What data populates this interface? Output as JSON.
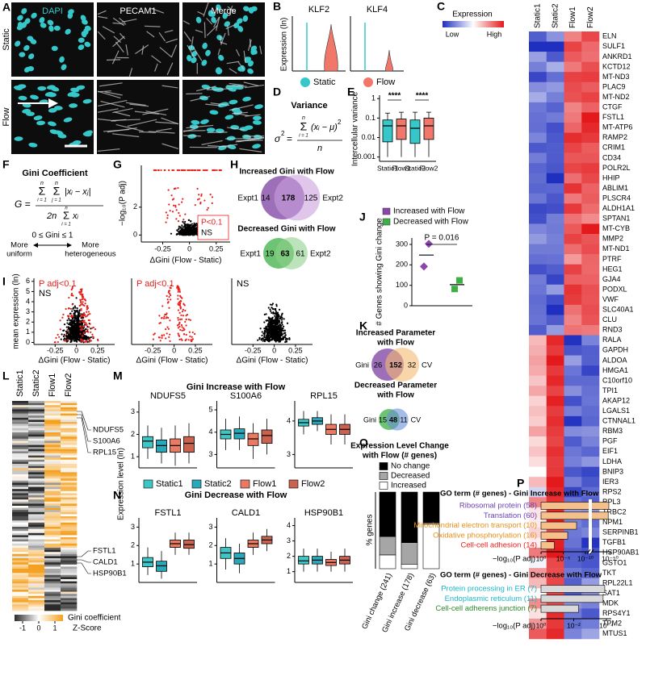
{
  "A": {
    "label": "A",
    "channels": [
      "DAPI",
      "PECAM1",
      "Merge"
    ],
    "conditions": [
      "Static",
      "Flow"
    ]
  },
  "B": {
    "label": "B",
    "genes": [
      "KLF2",
      "KLF4"
    ],
    "y_label": "Expression (ln)",
    "legend": [
      {
        "name": "Static",
        "color": "#35c7c9"
      },
      {
        "name": "Flow",
        "color": "#f0776a"
      }
    ]
  },
  "C": {
    "label": "C",
    "legend_title": "Expression",
    "legend_low": "Low",
    "legend_high": "High",
    "columns": [
      "Static1",
      "Static2",
      "Flow1",
      "Flow2"
    ],
    "genes_up": [
      "ELN",
      "SULF1",
      "ANKRD1",
      "KCTD12",
      "MT-ND3",
      "PLAC9",
      "MT-ND2",
      "CTGF",
      "FSTL1",
      "MT-ATP6",
      "RAMP2",
      "CRIM1",
      "CD34",
      "POLR2L",
      "HHIP",
      "ABLIM1",
      "PLSCR4",
      "ALDH1A1",
      "SPTAN1",
      "MT-CYB",
      "MMP2",
      "MT-ND1",
      "PTRF",
      "HEG1",
      "GJA4",
      "PODXL",
      "VWF",
      "SLC40A1",
      "CLU",
      "RND3"
    ],
    "genes_down": [
      "RALA",
      "GAPDH",
      "ALDOA",
      "HMGA1",
      "C10orf10",
      "TPI1",
      "AKAP12",
      "LGALS1",
      "CTNNAL1",
      "RBM3",
      "PGF",
      "EIF1",
      "LDHA",
      "BNIP3",
      "IER3",
      "RPS2",
      "RPL3",
      "TRBC2",
      "NPM1",
      "SERPINB1",
      "TGFB1",
      "HSP90AB1",
      "GSTO1",
      "TKT",
      "RPL22L1",
      "SAT1",
      "MDK",
      "RPS4Y1",
      "TPM2",
      "MTUS1"
    ]
  },
  "D": {
    "label": "D",
    "title": "Variance",
    "sigma": "σ",
    "sq": "2",
    "eq": "=",
    "sum": "Σ",
    "sum_top": "n",
    "sum_bottom": "i = 1",
    "numerator": "(xᵢ − μ)",
    "denominator": "n"
  },
  "E": {
    "label": "E",
    "y_label": "Intercellular variance",
    "log_y": true,
    "ylim": [
      0.0006,
      1.5
    ],
    "yticks": [
      1,
      0.1,
      0.01,
      0.001
    ],
    "categories": [
      "Static1",
      "Flow1",
      "Static2",
      "Flow2"
    ],
    "colors": [
      "#35c7c9",
      "#f0776a",
      "#35c7c9",
      "#f0776a"
    ],
    "boxes": [
      [
        0.001,
        0.006,
        0.04,
        0.08,
        0.18
      ],
      [
        0.001,
        0.008,
        0.04,
        0.09,
        0.2
      ],
      [
        0.001,
        0.005,
        0.03,
        0.08,
        0.2
      ],
      [
        0.001,
        0.008,
        0.04,
        0.1,
        0.2
      ]
    ],
    "significance": [
      "****",
      "****"
    ]
  },
  "F": {
    "label": "F",
    "title": "Gini Coefficient",
    "lhs": "G =",
    "sum": "Σ",
    "sum_top": "n",
    "sum_bottom_i": "i = 1",
    "sum_bottom_j": "j = 1",
    "numerator": "|xᵢ − xⱼ|",
    "denominator_prefix": "2n",
    "denominator_term": "xᵢ",
    "range": "0 ≤ Gini ≤ 1",
    "left_note": [
      "More",
      "uniform"
    ],
    "right_note": [
      "More",
      "heterogeneous"
    ]
  },
  "G": {
    "label": "G",
    "y_label": "−log₁₀(P adj)",
    "x_label": "ΔGini (Flow - Static)",
    "xlim": [
      -0.45,
      0.38
    ],
    "ylim": [
      -0.5,
      5
    ],
    "xticks": [
      -0.25,
      0,
      0.25
    ],
    "yticks": [
      0,
      2
    ],
    "legend": [
      {
        "name": "P<0.1",
        "color": "#e8201c"
      },
      {
        "name": "NS",
        "color": "#000000"
      }
    ]
  },
  "H": {
    "label": "H",
    "venns": [
      {
        "title": "Increased Gini with Flow",
        "left": "Expt1",
        "right": "Expt2",
        "counts": [
          14,
          178,
          125
        ],
        "colors": [
          "#7b3fa0",
          "#c9a0dc"
        ]
      },
      {
        "title": "Decreased Gini with Flow",
        "left": "Expt1",
        "right": "Expt2",
        "counts": [
          19,
          63,
          61
        ],
        "colors": [
          "#3cb043",
          "#8fd18a"
        ]
      }
    ]
  },
  "I": {
    "label": "I",
    "y_label": "mean expression (ln)",
    "x_label": "ΔGini (Flow - Static)",
    "xlim": [
      -0.5,
      0.45
    ],
    "ylim": [
      -0.2,
      6.3
    ],
    "xticks": [
      -0.25,
      0,
      0.25
    ],
    "yticks": [
      0,
      1,
      2,
      3,
      4,
      5,
      6
    ],
    "panels": [
      {
        "annotations": [
          {
            "text": "P adj<0.1",
            "color": "#e8201c"
          },
          {
            "text": "NS",
            "color": "#000000"
          }
        ]
      },
      {
        "annotations": [
          {
            "text": "P adj<0.1",
            "color": "#e8201c"
          }
        ]
      },
      {
        "annotations": [
          {
            "text": "NS",
            "color": "#000000"
          }
        ]
      }
    ]
  },
  "J": {
    "label": "J",
    "y_label": "# Genes showing Gini change",
    "ylim": [
      0,
      330
    ],
    "yticks": [
      0,
      100,
      200,
      300
    ],
    "annotation": "P = 0.016",
    "series": [
      {
        "name": "Increased with Flow",
        "color": "#8e44ad",
        "values": [
          192,
          303
        ],
        "mean": 248
      },
      {
        "name": "Decreased with Flow",
        "color": "#3cb043",
        "values": [
          82,
          124
        ],
        "mean": 103
      }
    ]
  },
  "K": {
    "label": "K",
    "venns": [
      {
        "title_lines": [
          "Increased Parameter",
          "with Flow"
        ],
        "left": "Gini",
        "right": "CV",
        "counts": [
          26,
          152,
          32
        ],
        "colors": [
          "#7b3fa0",
          "#f5b971"
        ]
      },
      {
        "title_lines": [
          "Decreased Parameter",
          "with Flow"
        ],
        "left": "Gini",
        "right": "CV",
        "counts": [
          15,
          48,
          11
        ],
        "colors": [
          "#3cb043",
          "#6a8fd8"
        ]
      }
    ]
  },
  "L": {
    "label": "L",
    "columns": [
      "Static1",
      "Static2",
      "Flow1",
      "Flow2"
    ],
    "genes_top": [
      "NDUFS5",
      "S100A6",
      "RPL15"
    ],
    "genes_bottom": [
      "FSTL1",
      "CALD1",
      "HSP90B1"
    ],
    "colorbar_lim": [
      -1.5,
      1.5
    ],
    "colorbar_ticks": [
      -1,
      0,
      1
    ],
    "colorbar_label": [
      "Gini coefficient",
      "Z-Score"
    ]
  },
  "M": {
    "label": "M",
    "title": "Gini Increase with Flow",
    "y_label": "Expression level (ln)",
    "categories": [
      "Static1",
      "Static2",
      "Flow1",
      "Flow2"
    ],
    "colors": [
      "#3ec6c6",
      "#2aa7b8",
      "#ea7a62",
      "#c9624f"
    ],
    "genes": [
      {
        "name": "NDUFS5",
        "ylim": [
          0.5,
          3.5
        ],
        "yticks": [
          1,
          2,
          3
        ],
        "boxes": [
          [
            0.9,
            1.4,
            1.7,
            1.9,
            2.4
          ],
          [
            0.7,
            1.2,
            1.5,
            1.75,
            2.3
          ],
          [
            0.6,
            1.2,
            1.5,
            1.8,
            2.4
          ],
          [
            0.7,
            1.2,
            1.6,
            1.9,
            2.5
          ]
        ]
      },
      {
        "name": "S100A6",
        "ylim": [
          2.4,
          5.4
        ],
        "yticks": [
          3,
          4,
          5
        ],
        "boxes": [
          [
            3.2,
            3.7,
            3.9,
            4.1,
            4.6
          ],
          [
            3.2,
            3.7,
            3.95,
            4.15,
            4.7
          ],
          [
            2.8,
            3.4,
            3.7,
            3.95,
            4.4
          ],
          [
            3.0,
            3.5,
            3.85,
            4.1,
            4.6
          ]
        ]
      },
      {
        "name": "RPL15",
        "ylim": [
          2.6,
          4.6
        ],
        "yticks": [
          3,
          4
        ],
        "boxes": [
          [
            3.6,
            3.85,
            3.95,
            4.05,
            4.3
          ],
          [
            3.7,
            3.9,
            4.0,
            4.1,
            4.3
          ],
          [
            3.3,
            3.6,
            3.75,
            3.9,
            4.2
          ],
          [
            3.3,
            3.6,
            3.75,
            3.9,
            4.2
          ]
        ]
      }
    ]
  },
  "N": {
    "label": "N",
    "title": "Gini Decrease with Flow",
    "genes": [
      {
        "name": "FSTL1",
        "ylim": [
          0,
          3.5
        ],
        "yticks": [
          1,
          2,
          3
        ],
        "boxes": [
          [
            0.4,
            0.85,
            1.1,
            1.35,
            1.9
          ],
          [
            0.2,
            0.6,
            0.9,
            1.15,
            1.7
          ],
          [
            1.5,
            1.9,
            2.1,
            2.3,
            2.7
          ],
          [
            1.5,
            1.85,
            2.05,
            2.3,
            2.7
          ]
        ]
      },
      {
        "name": "CALD1",
        "ylim": [
          0,
          3.5
        ],
        "yticks": [
          1,
          2,
          3
        ],
        "boxes": [
          [
            0.7,
            1.3,
            1.6,
            1.9,
            2.4
          ],
          [
            0.5,
            1.0,
            1.3,
            1.6,
            2.1
          ],
          [
            1.5,
            1.9,
            2.1,
            2.3,
            2.7
          ],
          [
            1.7,
            2.1,
            2.3,
            2.5,
            2.9
          ]
        ]
      },
      {
        "name": "HSP90B1",
        "ylim": [
          0.3,
          4.5
        ],
        "yticks": [
          1,
          2,
          3,
          4
        ],
        "boxes": [
          [
            1.0,
            1.5,
            1.7,
            2.0,
            2.5
          ],
          [
            1.0,
            1.5,
            1.75,
            2.0,
            2.5
          ],
          [
            1.0,
            1.4,
            1.6,
            1.8,
            2.3
          ],
          [
            1.0,
            1.5,
            1.75,
            2.0,
            2.5
          ]
        ]
      }
    ]
  },
  "O": {
    "label": "O",
    "type": "stacked-bar",
    "title_lines": [
      "Expression Level Change",
      "with Flow (# genes)"
    ],
    "y_label": "% genes",
    "ylim": [
      0,
      100
    ],
    "categories": [
      "Gini change (241)",
      "Gini increase (178)",
      "Gini decrease (63)"
    ],
    "series": [
      {
        "name": "Increased",
        "color": "#ffffff",
        "values": [
          18,
          6,
          58
        ]
      },
      {
        "name": "Decreased",
        "color": "#a6a6a6",
        "values": [
          24,
          28,
          2
        ]
      },
      {
        "name": "No change",
        "color": "#000000",
        "values": [
          58,
          66,
          40
        ]
      }
    ]
  },
  "P": {
    "label": "P",
    "sections": [
      {
        "title": "GO term (# genes) - Gini Increase with Flow",
        "bar_color": "#f6c08a",
        "x_label": "−log₁₀(P adj)",
        "xlim": [
          0,
          52
        ],
        "axis_break": 10,
        "xticks": [
          {
            "value": 0,
            "label": "10⁰"
          },
          {
            "value": 5,
            "label": "10⁻⁵"
          },
          {
            "value": 10,
            "label": "10⁻¹⁰"
          },
          {
            "value": 50,
            "label": "10⁻⁵⁰"
          }
        ],
        "terms": [
          "Ribosomal protein (58)",
          "Translation (60)",
          "Mitochondrial electron transport (10)",
          "Oxidative phosphorylation (16)",
          "Cell-cell adhesion (14)"
        ],
        "term_colors": [
          "#6a3fb5",
          "#6a3fb5",
          "#e8901c",
          "#e8901c",
          "#e8201c"
        ],
        "values": [
          48,
          47,
          8,
          6,
          3
        ]
      },
      {
        "title": "GO term (# genes) - Gini Decrease with Flow",
        "bar_color": "#d9d9d9",
        "x_label": "−log₁₀(P adj)",
        "xlim": [
          0,
          4.2
        ],
        "xticks": [
          {
            "value": 0,
            "label": "10⁰"
          },
          {
            "value": 2,
            "label": "10⁻²"
          },
          {
            "value": 4,
            "label": "10⁻⁴"
          }
        ],
        "terms": [
          "Protein processing in ER (7)",
          "Endoplasmic reticulum (11)",
          "Cell-cell adherens junction (7)"
        ],
        "term_colors": [
          "#1cb5c8",
          "#1cb5c8",
          "#2e8b2e"
        ],
        "values": [
          3.9,
          3.8,
          2.3
        ]
      }
    ]
  }
}
